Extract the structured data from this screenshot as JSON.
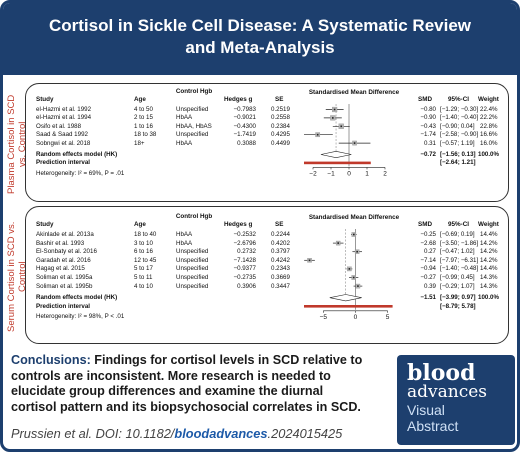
{
  "title": "Cortisol in Sickle Cell Disease: A Systematic Review and Meta-Analysis",
  "panel1": {
    "side_label": "Plasma Cortisol in SCD vs. Control",
    "headers": {
      "study": "Study",
      "age": "Age",
      "control_hgb": "Control Hgb",
      "hedges": "Hedges g",
      "se": "SE",
      "smd_plot": "Standardised Mean Difference",
      "smd": "SMD",
      "ci": "95%-CI",
      "weight": "Weight"
    },
    "rows": [
      {
        "study": "el-Hazmi et al. 1992",
        "age": "4 to 50",
        "hgb": "Unspecified",
        "g": "−0.7983",
        "se": "0.2519",
        "smd": "−0.80",
        "ci": "[−1.29; −0.30]",
        "weight": "22.4%",
        "est": -0.8,
        "lo": -1.29,
        "hi": -0.3,
        "w": 22.4
      },
      {
        "study": "el-Hazmi et al. 1994",
        "age": "2 to 15",
        "hgb": "HbAA",
        "g": "−0.9021",
        "se": "0.2558",
        "smd": "−0.90",
        "ci": "[−1.40; −0.40]",
        "weight": "22.2%",
        "est": -0.9,
        "lo": -1.4,
        "hi": -0.4,
        "w": 22.2
      },
      {
        "study": "Osifo et al. 1988",
        "age": "1 to 16",
        "hgb": "HbAA, HbAS",
        "g": "−0.4300",
        "se": "0.2384",
        "smd": "−0.43",
        "ci": "[−0.90; 0.04]",
        "weight": "22.8%",
        "est": -0.43,
        "lo": -0.9,
        "hi": 0.04,
        "w": 22.8
      },
      {
        "study": "Saad & Saad 1992",
        "age": "18 to 38",
        "hgb": "Unspecified",
        "g": "−1.7419",
        "se": "0.4295",
        "smd": "−1.74",
        "ci": "[−2.58; −0.90]",
        "weight": "16.6%",
        "est": -1.74,
        "lo": -2.58,
        "hi": -0.9,
        "w": 16.6
      },
      {
        "study": "Sobngwi et al. 2018",
        "age": "18+",
        "hgb": "HbAA",
        "g": "0.3088",
        "se": "0.4499",
        "smd": "0.31",
        "ci": "[−0.57; 1.19]",
        "weight": "16.0%",
        "est": 0.31,
        "lo": -0.57,
        "hi": 1.19,
        "w": 16.0
      }
    ],
    "random_label": "Random effects model (HK)",
    "random_smd": "−0.72",
    "random_ci": "[−1.56; 0.13]",
    "random_weight": "100.0%",
    "pi_label": "Prediction interval",
    "pi_ci": "[−2.64; 1.21]",
    "heterogeneity": "Heterogeneity: I² = 69%, P = .01",
    "pooled": {
      "est": -0.72,
      "lo": -1.56,
      "hi": 0.13,
      "pi_lo": -2.64,
      "pi_hi": 1.21
    },
    "axis": {
      "min": -2.5,
      "max": 2.5,
      "ticks": [
        -2,
        -1,
        0,
        1,
        2
      ],
      "tick_labels": [
        "−2",
        "−1",
        "0",
        "1",
        "2"
      ]
    }
  },
  "panel2": {
    "side_label": "Serum Cortisol in SCD vs. Control",
    "headers": {
      "study": "Study",
      "age": "Age",
      "control_hgb": "Control Hgb",
      "hedges": "Hedges g",
      "se": "SE",
      "smd_plot": "Standardised Mean Difference",
      "smd": "SMD",
      "ci": "95%-CI",
      "weight": "Weight"
    },
    "rows": [
      {
        "study": "Akinlade et al. 2013a",
        "age": "18 to 40",
        "hgb": "HbAA",
        "g": "−0.2532",
        "se": "0.2244",
        "smd": "−0.25",
        "ci": "[−0.69; 0.19]",
        "weight": "14.4%",
        "est": -0.25,
        "lo": -0.69,
        "hi": 0.19,
        "w": 14.4
      },
      {
        "study": "Bashir et al. 1993",
        "age": "3 to 10",
        "hgb": "HbAA",
        "g": "−2.6796",
        "se": "0.4202",
        "smd": "−2.68",
        "ci": "[−3.50; −1.86]",
        "weight": "14.2%",
        "est": -2.68,
        "lo": -3.5,
        "hi": -1.86,
        "w": 14.2
      },
      {
        "study": "El-Sonbaty et al. 2016",
        "age": "6 to 16",
        "hgb": "Unspecified",
        "g": "0.2732",
        "se": "0.3797",
        "smd": "0.27",
        "ci": "[−0.47; 1.02]",
        "weight": "14.2%",
        "est": 0.27,
        "lo": -0.47,
        "hi": 1.02,
        "w": 14.2
      },
      {
        "study": "Garadah et al. 2016",
        "age": "12 to 45",
        "hgb": "Unspecified",
        "g": "−7.1428",
        "se": "0.4242",
        "smd": "−7.14",
        "ci": "[−7.97; −6.31]",
        "weight": "14.2%",
        "est": -7.14,
        "lo": -7.97,
        "hi": -6.31,
        "w": 14.2
      },
      {
        "study": "Hagag et al. 2015",
        "age": "5 to 17",
        "hgb": "Unspecified",
        "g": "−0.9377",
        "se": "0.2343",
        "smd": "−0.94",
        "ci": "[−1.40; −0.48]",
        "weight": "14.4%",
        "est": -0.94,
        "lo": -1.4,
        "hi": -0.48,
        "w": 14.4
      },
      {
        "study": "Soliman et al. 1995a",
        "age": "5 to 11",
        "hgb": "Unspecified",
        "g": "−0.2735",
        "se": "0.3669",
        "smd": "−0.27",
        "ci": "[−0.99; 0.45]",
        "weight": "14.3%",
        "est": -0.27,
        "lo": -0.99,
        "hi": 0.45,
        "w": 14.3
      },
      {
        "study": "Soliman et al. 1995b",
        "age": "4 to 10",
        "hgb": "Unspecified",
        "g": "0.3906",
        "se": "0.3447",
        "smd": "0.39",
        "ci": "[−0.29; 1.07]",
        "weight": "14.3%",
        "est": 0.39,
        "lo": -0.29,
        "hi": 1.07,
        "w": 14.3
      }
    ],
    "random_label": "Random effects model (HK)",
    "random_smd": "−1.51",
    "random_ci": "[−3.99; 0.97]",
    "random_weight": "100.0%",
    "pi_label": "Prediction interval",
    "pi_ci": "[−8.79; 5.78]",
    "heterogeneity": "Heterogeneity: I² = 98%, P < .01",
    "pooled": {
      "est": -1.51,
      "lo": -3.99,
      "hi": 0.97,
      "pi_lo": -8.79,
      "pi_hi": 5.78
    },
    "axis": {
      "min": -8,
      "max": 6,
      "ticks": [
        -5,
        0,
        5
      ],
      "tick_labels": [
        "−5",
        "0",
        "5"
      ]
    }
  },
  "conclusion": {
    "head": "Conclusions:",
    "body": "Findings for cortisol levels in SCD relative to controls are inconsistent. More research is needed to elucidate group differences and examine the diurnal cortisol pattern and its biopsychosocial correlates in SCD."
  },
  "citation": {
    "prefix": "Prussien et al. DOI: 10.1182/",
    "accent": "bloodadvances",
    "suffix": ".2024015425"
  },
  "logo": {
    "blood": "blood",
    "advances": "advances",
    "visual": "Visual",
    "abstract": "Abstract"
  },
  "colors": {
    "navy": "#1d3f6e",
    "side_label": "#c0392b",
    "pooled_bar": "#c0392b",
    "box": "#b5b5b5"
  }
}
